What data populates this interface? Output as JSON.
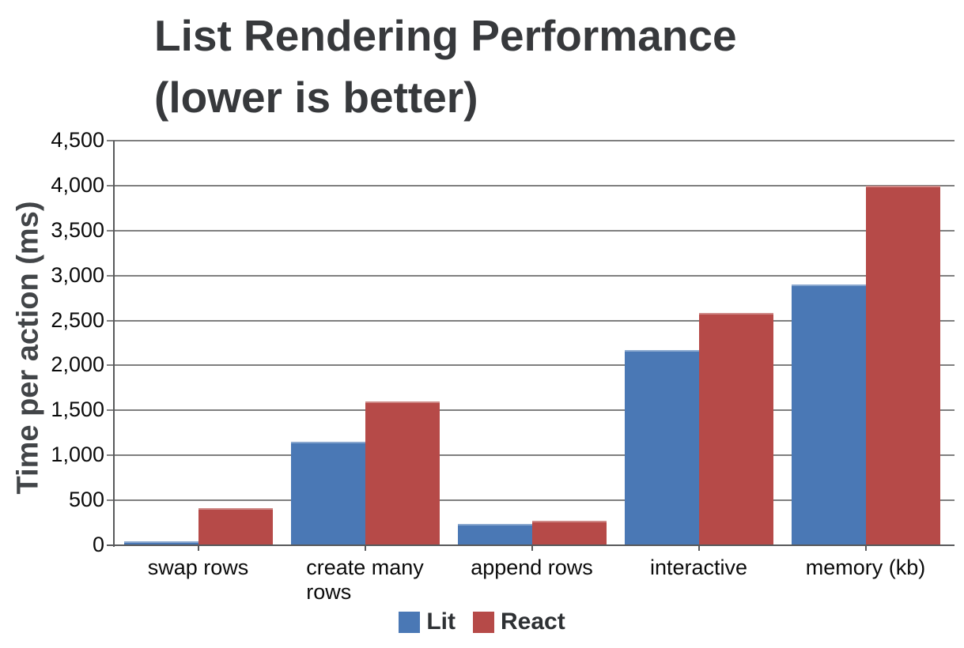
{
  "chart_data": {
    "type": "bar",
    "title": "List Rendering Performance (lower is better)",
    "title_lines": [
      "List Rendering Performance",
      "(lower is better)"
    ],
    "ylabel": "Time per action (ms)",
    "xlabel": "",
    "categories": [
      "swap rows",
      "create many rows",
      "append rows",
      "interactive",
      "memory (kb)"
    ],
    "category_label_lines": [
      [
        "swap rows"
      ],
      [
        "create many",
        "rows"
      ],
      [
        "append rows"
      ],
      [
        "interactive"
      ],
      [
        "memory (kb)"
      ]
    ],
    "series": [
      {
        "name": "Lit",
        "color": "#4a78b5",
        "values": [
          40,
          1150,
          240,
          2175,
          2900
        ]
      },
      {
        "name": "React",
        "color": "#b64a48",
        "values": [
          410,
          1600,
          275,
          2585,
          4000
        ]
      }
    ],
    "ylim": [
      0,
      4500
    ],
    "y_ticks": [
      {
        "value": 0,
        "label": "0"
      },
      {
        "value": 500,
        "label": "500"
      },
      {
        "value": 1000,
        "label": "1,000"
      },
      {
        "value": 1500,
        "label": "1,500"
      },
      {
        "value": 2000,
        "label": "2,000"
      },
      {
        "value": 2500,
        "label": "2,500"
      },
      {
        "value": 3000,
        "label": "3,000"
      },
      {
        "value": 3500,
        "label": "3,500"
      },
      {
        "value": 4000,
        "label": "4,000"
      },
      {
        "value": 4500,
        "label": "4,500"
      }
    ],
    "grid": true,
    "legend_position": "bottom",
    "legend_labels": [
      "Lit",
      "React"
    ]
  },
  "style": {
    "title_color": "#37393c",
    "grid_color": "#7f7f7f",
    "axis_color": "#58595b",
    "tick_label_color": "#0b0b0b",
    "series_colors": {
      "lit": "#4a78b5",
      "react": "#b64a48"
    },
    "background": "#ffffff"
  }
}
